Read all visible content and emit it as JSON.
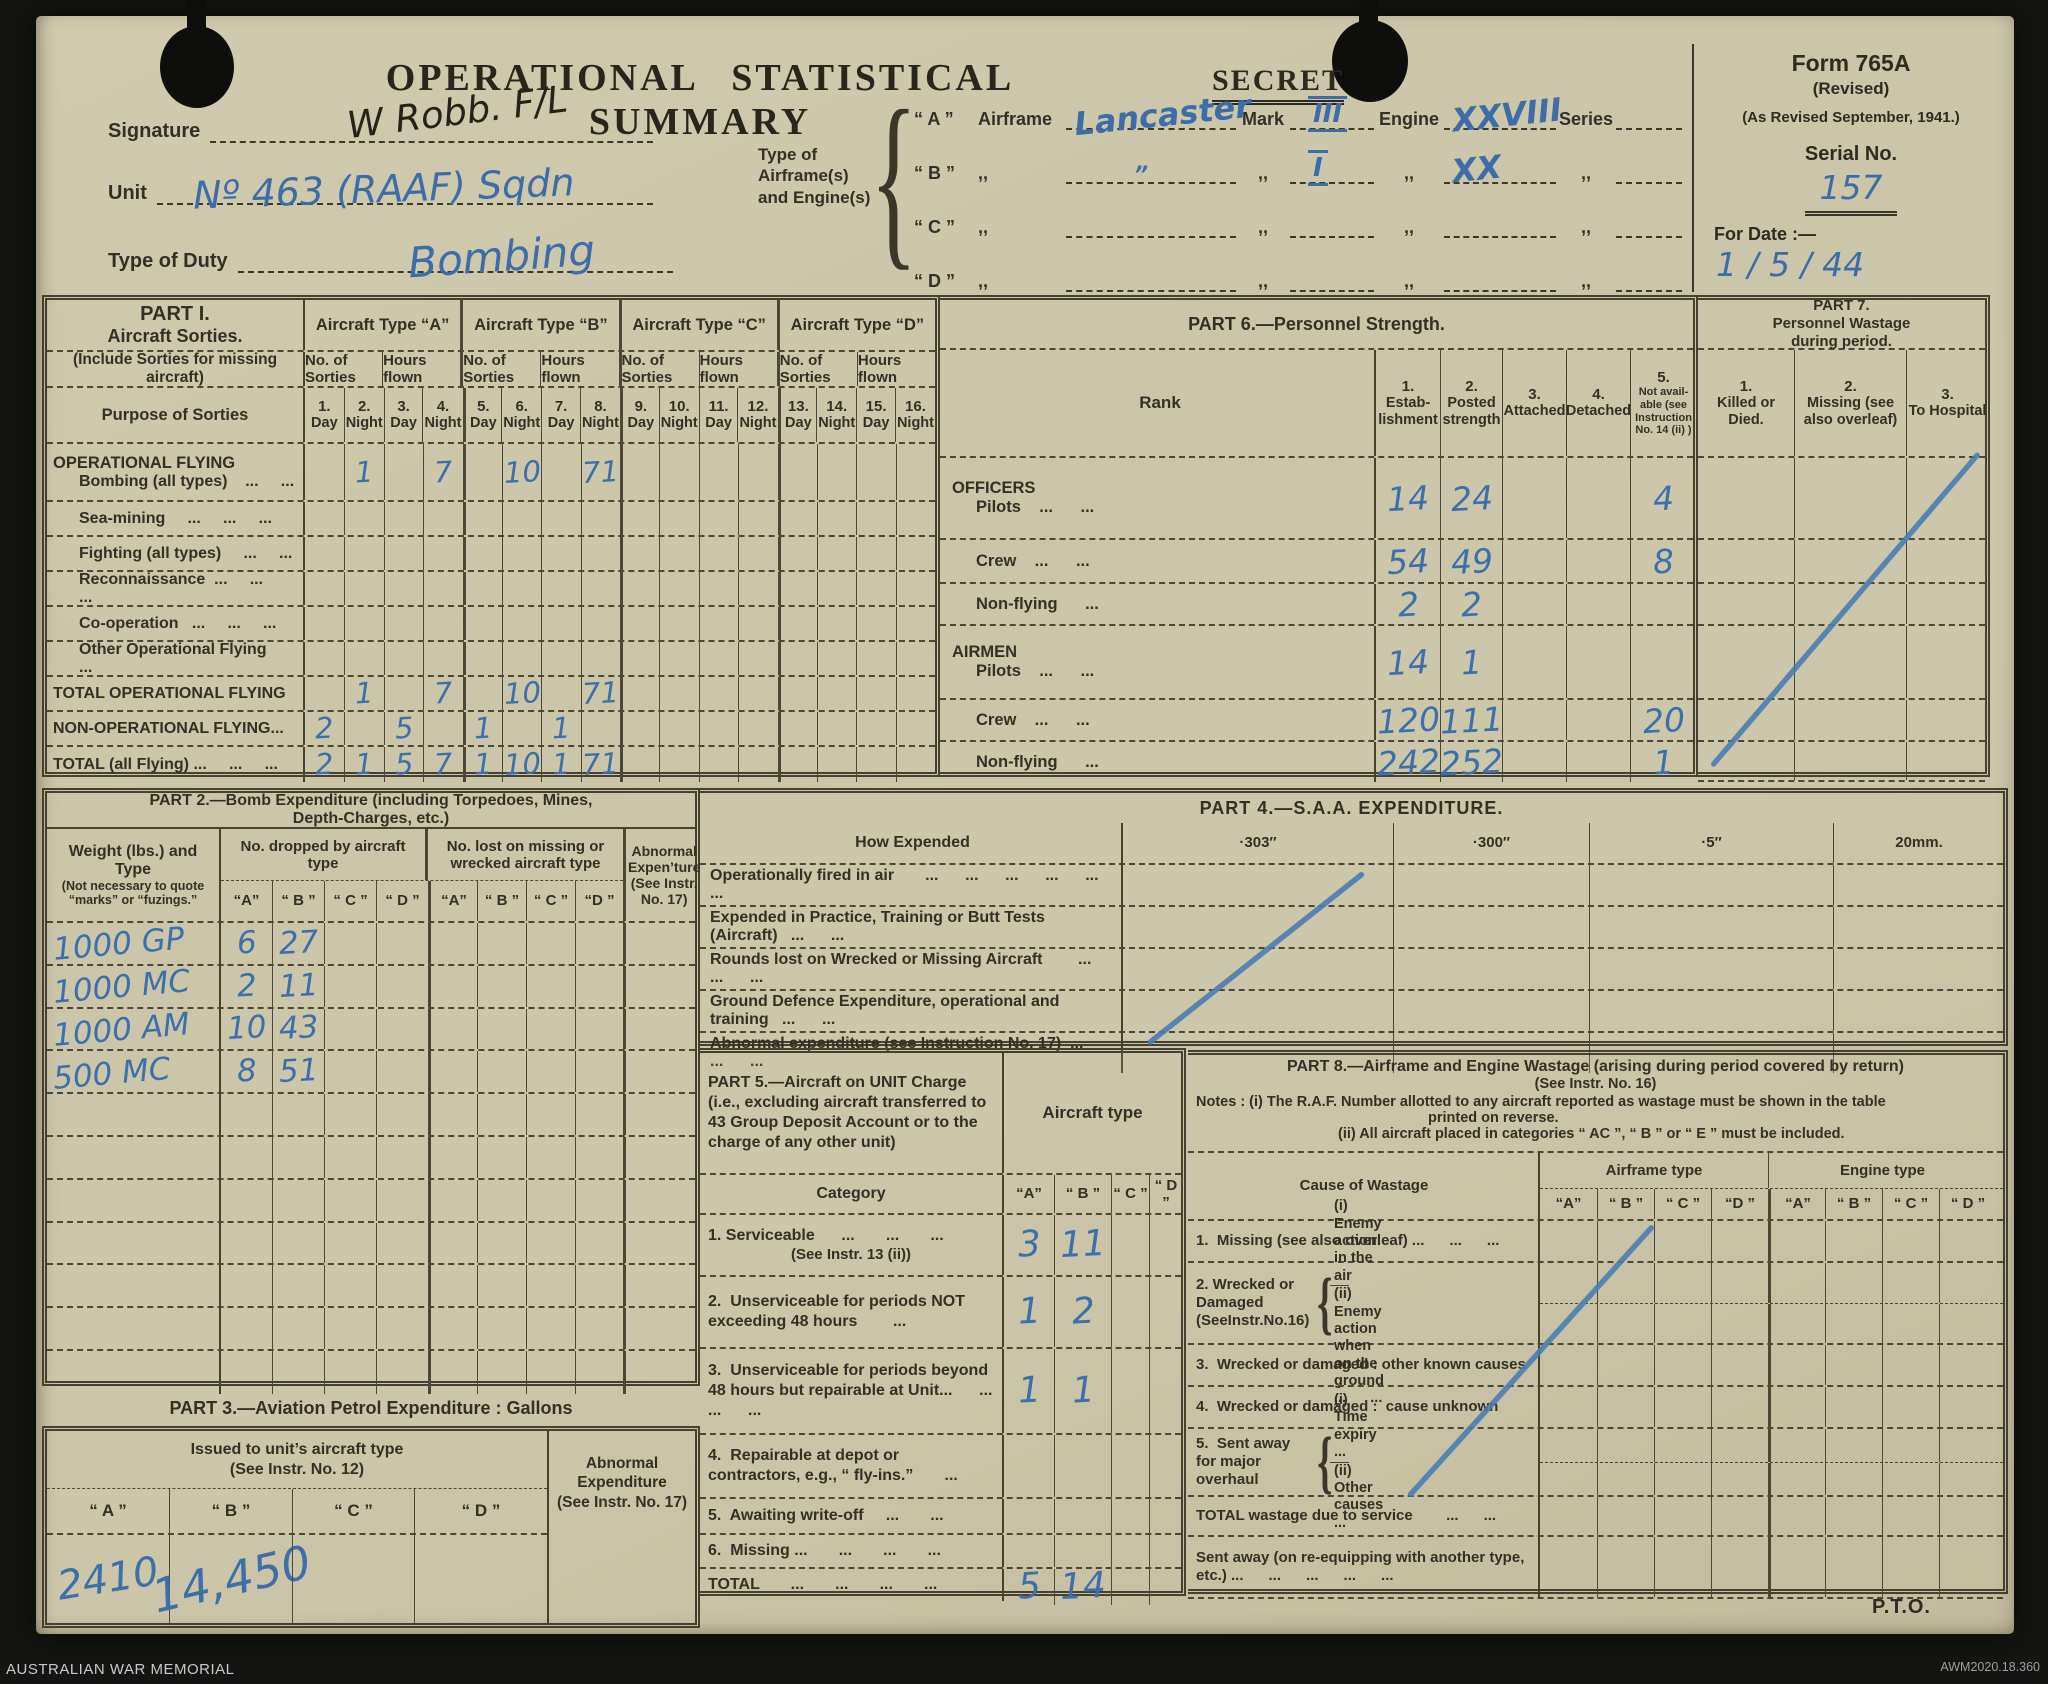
{
  "header": {
    "title": "OPERATIONAL STATISTICAL SUMMARY",
    "classification": "SECRET",
    "form_name": "Form 765A",
    "form_revised": "(Revised)",
    "form_note": "(As Revised September, 1941.)",
    "serial_label": "Serial No.",
    "serial_value": "157",
    "date_label": "For Date :—",
    "date_value": "1 / 5 / 44",
    "signature_label": "Signature",
    "signature_value": "W Robb.  F/L",
    "unit_label": "Unit",
    "unit_value": "Nº 463 (RAAF) Sqdn",
    "duty_label": "Type of Duty",
    "duty_value": "Bombing",
    "airframe_caption": "Type of Airframe(s) and Engine(s)",
    "airframe_rows": [
      {
        "key": "“ A ”",
        "lbl": "Airframe",
        "value": "Lancaster",
        "lbl2": "Mark",
        "mark": "III",
        "lbl3": "Engine",
        "engine": "XXVIII",
        "lbl4": "Series",
        "series": ""
      },
      {
        "key": "“ B ”",
        "lbl": ",,",
        "value": "”",
        "lbl2": ",,",
        "mark": "I",
        "lbl3": ",,",
        "engine": "XX",
        "lbl4": ",,",
        "series": ""
      },
      {
        "key": "“ C ”",
        "lbl": ",,",
        "value": "",
        "lbl2": ",,",
        "mark": "",
        "lbl3": ",,",
        "engine": "",
        "lbl4": ",,",
        "series": ""
      },
      {
        "key": "“ D ”",
        "lbl": ",,",
        "value": "",
        "lbl2": ",,",
        "mark": "",
        "lbl3": ",,",
        "engine": "",
        "lbl4": ",,",
        "series": ""
      }
    ]
  },
  "part1": {
    "title1": "PART I.",
    "title2": "Aircraft Sorties.",
    "subtitle": "(Include Sorties for missing aircraft)",
    "purpose": "Purpose of Sorties",
    "groups": [
      "Aircraft Type “A”",
      "Aircraft Type “B”",
      "Aircraft Type “C”",
      "Aircraft Type “D”"
    ],
    "sub_sorties": "No. of Sorties",
    "sub_hours": "Hours flown",
    "columns": [
      {
        "n": "1.",
        "d": "Day"
      },
      {
        "n": "2.",
        "d": "Night"
      },
      {
        "n": "3.",
        "d": "Day"
      },
      {
        "n": "4.",
        "d": "Night"
      },
      {
        "n": "5.",
        "d": "Day"
      },
      {
        "n": "6.",
        "d": "Night"
      },
      {
        "n": "7.",
        "d": "Day"
      },
      {
        "n": "8.",
        "d": "Night"
      },
      {
        "n": "9.",
        "d": "Day"
      },
      {
        "n": "10.",
        "d": "Night"
      },
      {
        "n": "11.",
        "d": "Day"
      },
      {
        "n": "12.",
        "d": "Night"
      },
      {
        "n": "13.",
        "d": "Day"
      },
      {
        "n": "14.",
        "d": "Night"
      },
      {
        "n": "15.",
        "d": "Day"
      },
      {
        "n": "16.",
        "d": "Night"
      }
    ],
    "rows": [
      {
        "group": "OPERATIONAL FLYING",
        "label": "Bombing (all types)    ...     ...",
        "cells": [
          "",
          "1",
          "",
          "7",
          "",
          "10",
          "",
          "71",
          "",
          "",
          "",
          "",
          "",
          "",
          "",
          ""
        ]
      },
      {
        "label": "Sea-mining     ...     ...     ..."
      },
      {
        "label": "Fighting (all types)     ...     ..."
      },
      {
        "label": "Reconnaissance  ...     ...     ..."
      },
      {
        "label": "Co-operation   ...     ...     ..."
      },
      {
        "label": "Other Operational Flying     ..."
      },
      {
        "label": "TOTAL OPERATIONAL FLYING",
        "cells": [
          "",
          "1",
          "",
          "7",
          "",
          "10",
          "",
          "71",
          "",
          "",
          "",
          "",
          "",
          "",
          "",
          ""
        ]
      },
      {
        "label": "NON-OPERATIONAL FLYING...",
        "cells": [
          "2",
          "",
          "5",
          "",
          "1",
          "",
          "1",
          "",
          "",
          "",
          "",
          "",
          "",
          "",
          "",
          ""
        ]
      },
      {
        "label": "TOTAL (all Flying) ...     ...     ...",
        "cells": [
          "2",
          "1",
          "5",
          "7",
          "1",
          "10",
          "1",
          "71",
          "",
          "",
          "",
          "",
          "",
          "",
          "",
          ""
        ]
      }
    ]
  },
  "part6": {
    "title": "PART 6.—Personnel Strength.",
    "rank_header": "Rank",
    "columns": [
      {
        "n": "1.",
        "d": "Estab-lishment"
      },
      {
        "n": "2.",
        "d": "Posted strength"
      },
      {
        "n": "3.",
        "d": "Attached"
      },
      {
        "n": "4.",
        "d": "Detached"
      },
      {
        "n": "5.",
        "d": "Not avail-able (see Instruction No. 14 (ii) )"
      }
    ],
    "rows": [
      {
        "group": "OFFICERS",
        "label": "Pilots    ...      ...",
        "cells": [
          "14",
          "24",
          "",
          "",
          "4"
        ]
      },
      {
        "label": "Crew    ...      ...",
        "cells": [
          "54",
          "49",
          "",
          "",
          "8"
        ]
      },
      {
        "label": "Non-flying      ...",
        "cells": [
          "2",
          "2",
          "",
          "",
          ""
        ]
      },
      {
        "group": "AIRMEN",
        "label": "Pilots    ...      ...",
        "cells": [
          "14",
          "1",
          "",
          "",
          ""
        ]
      },
      {
        "label": "Crew    ...      ...",
        "cells": [
          "120",
          "111",
          "",
          "",
          "20"
        ]
      },
      {
        "label": "Non-flying      ...",
        "cells": [
          "242",
          "252",
          "",
          "",
          "1"
        ]
      }
    ]
  },
  "part7": {
    "t1": "PART 7.",
    "t2": "Personnel Wastage",
    "t3": "during period.",
    "columns": [
      {
        "n": "1.",
        "d": "Killed or Died."
      },
      {
        "n": "2.",
        "d": "Missing (see also overleaf)"
      },
      {
        "n": "3.",
        "d": "To Hospital"
      }
    ]
  },
  "part2": {
    "title1": "PART 2.—Bomb Expenditure (including Torpedoes, Mines,",
    "title2": "Depth-Charges, etc.)",
    "weight_header": "Weight (lbs.) and Type",
    "weight_note": "(Not necessary to quote “marks” or “fuzings.”",
    "group_dropped": "No. dropped by aircraft type",
    "group_lost": "No. lost on missing or wrecked aircraft type",
    "abnormal": "Abnormal Expen’ture (See Instr. No. 17)",
    "letters": [
      "“A”",
      "“ B ”",
      "“ C ”",
      "“ D ”",
      "“A”",
      "“ B ”",
      "“ C ”",
      "“D ”"
    ],
    "rows": [
      {
        "w": "1000 GP",
        "cells": [
          "6",
          "27",
          "",
          "",
          "",
          "",
          "",
          "",
          ""
        ]
      },
      {
        "w": "1000 MC",
        "cells": [
          "2",
          "11",
          "",
          "",
          "",
          "",
          "",
          "",
          ""
        ]
      },
      {
        "w": "1000 AM",
        "cells": [
          "10",
          "43",
          "",
          "",
          "",
          "",
          "",
          "",
          ""
        ]
      },
      {
        "w": "500 MC",
        "cells": [
          "8",
          "51",
          "",
          "",
          "",
          "",
          "",
          "",
          ""
        ]
      }
    ]
  },
  "part4": {
    "title": "PART 4.—S.A.A.  EXPENDITURE.",
    "how_header": "How Expended",
    "columns": [
      "·303″",
      "·300″",
      "·5″",
      "20mm."
    ],
    "rows": [
      {
        "label": "Operationally fired in air       ...      ...      ...      ...      ...      ..."
      },
      {
        "label": "Expended in Practice, Training or Butt Tests (Aircraft)   ...      ..."
      },
      {
        "label": "Rounds lost on Wrecked or Missing Aircraft        ...      ...      ..."
      },
      {
        "label": "Ground Defence Expenditure, operational and training   ...      ..."
      },
      {
        "label": "Abnormal expenditure (see Instruction No. 17)  ...      ...      ..."
      }
    ]
  },
  "part5": {
    "title": "PART 5.—Aircraft on UNIT Charge (i.e., excluding aircraft transferred to 43 Group Deposit Account or to the charge of any other unit)",
    "aircraft_type": "Aircraft type",
    "category": "Category",
    "letters": [
      "“A”",
      "“ B ”",
      "“ C ”",
      "“ D ”"
    ],
    "rows": [
      {
        "label": "1. Serviceable      ...       ...       ...",
        "label2": "(See Instr. 13 (ii))",
        "cells": [
          "3",
          "11",
          "",
          ""
        ]
      },
      {
        "label": "2.  Unserviceable for periods NOT exceeding 48 hours        ...",
        "cells": [
          "1",
          "2",
          "",
          ""
        ]
      },
      {
        "label": "3.  Unserviceable for periods beyond 48 hours but repairable at Unit...      ...      ...      ...",
        "cells": [
          "1",
          "1",
          "",
          ""
        ]
      },
      {
        "label": "4.  Repairable at depot or contractors, e.g., “ fly-ins.”       ..."
      },
      {
        "label": "5.  Awaiting write-off     ...       ..."
      },
      {
        "label": "6.  Missing ...       ...       ...       ..."
      },
      {
        "label": "TOTAL       ...       ...       ...       ...",
        "cells": [
          "5",
          "14",
          "",
          ""
        ]
      }
    ]
  },
  "part8": {
    "title": "PART 8.—Airframe and Engine Wastage (arising during period covered by return)",
    "subtitle": "(See Instr. No. 16)",
    "note1": "Notes : (i)  The R.A.F. Number allotted to any aircraft reported as wastage must be shown in the table",
    "note1b": "printed on reverse.",
    "note2": "(ii)  All aircraft placed in categories “ AC ”, “ B ” or “ E ” must be included.",
    "cause_header": "Cause of Wastage",
    "groups": [
      "Airframe type",
      "Engine type"
    ],
    "letters": [
      "“A”",
      "“ B ”",
      "“ C ”",
      "“D ”",
      "“A”",
      "“ B ”",
      "“ C ”",
      "“ D ”"
    ],
    "rows": [
      {
        "label": "1.  Missing (see also overleaf) ...      ...      ..."
      },
      {
        "main": "2. Wrecked or Damaged (SeeInstr.No.16)",
        "s1": "(i) Enemy action in the air",
        "s2": "(ii) Enemy action when on the ground     ...      ..."
      },
      {
        "label": "3.  Wrecked or damaged : other known causes"
      },
      {
        "label": "4.  Wrecked or damaged :  cause unknown"
      },
      {
        "main": "5.  Sent away for major overhaul",
        "s1": "(i)  Time expiry      ...",
        "s2": "(ii)  Other causes      ..."
      },
      {
        "label": "TOTAL wastage due to service        ...      ..."
      },
      {
        "label": "Sent away (on re-equipping with another type, etc.) ...      ...      ...      ...      ..."
      }
    ]
  },
  "part3": {
    "title": "PART 3.—Aviation Petrol Expenditure :  Gallons",
    "issued": "Issued to unit’s aircraft type",
    "issued_note": "(See Instr. No. 12)",
    "abnormal1": "Abnormal Expenditure",
    "abnormal2": "(See Instr. No. 17)",
    "letters": [
      "“ A ”",
      "“ B ”",
      "“ C ”",
      "“ D ”"
    ],
    "values": [
      "2410",
      "14,450",
      "",
      ""
    ]
  },
  "pto": "P.T.O.",
  "footer": {
    "left": "AUSTRALIAN WAR MEMORIAL",
    "right": "AWM2020.18.360"
  },
  "empty3": [
    "",
    "",
    ""
  ],
  "empty4": [
    "",
    "",
    "",
    ""
  ],
  "empty8": [
    "",
    "",
    "",
    "",
    "",
    "",
    "",
    ""
  ],
  "empty9": [
    "",
    "",
    "",
    "",
    "",
    "",
    "",
    "",
    ""
  ],
  "empty16": [
    "",
    "",
    "",
    "",
    "",
    "",
    "",
    "",
    "",
    "",
    "",
    "",
    "",
    "",
    "",
    ""
  ]
}
